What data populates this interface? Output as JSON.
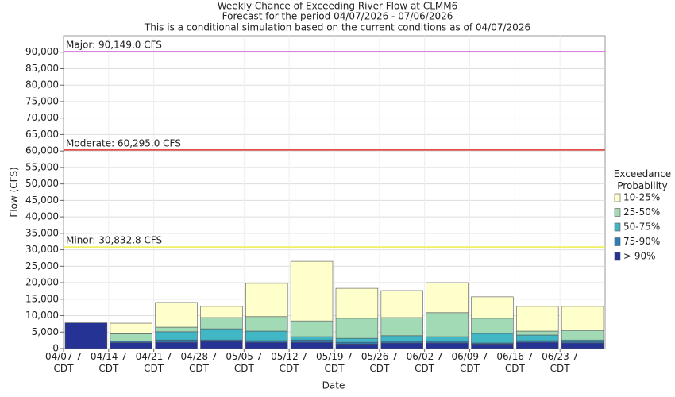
{
  "chart_data": {
    "type": "stacked_bar",
    "title": "Weekly Chance of Exceeding River Flow at CLMM6",
    "subtitle": "Forecast for the period 04/07/2026 - 07/06/2026",
    "note": "This is a conditional simulation based on the current conditions as of 04/07/2026",
    "x_label": "Date",
    "y_label": "Flow (CFS)",
    "categories": [
      "04/07 7 CDT",
      "04/14 7 CDT",
      "04/21 7 CDT",
      "04/28 7 CDT",
      "05/05 7 CDT",
      "05/12 7 CDT",
      "05/19 7 CDT",
      "05/26 7 CDT",
      "06/02 7 CDT",
      "06/09 7 CDT",
      "06/16 7 CDT",
      "06/23 7 CDT"
    ],
    "legend_title": "Exceedance Probability",
    "series": [
      {
        "name": "> 90%",
        "color": "#253494",
        "values": [
          7800,
          1800,
          1900,
          2200,
          1900,
          1900,
          1400,
          1700,
          1700,
          1400,
          1900,
          1700
        ]
      },
      {
        "name": "75-90%",
        "color": "#2c7fb8",
        "values": [
          0,
          400,
          700,
          400,
          500,
          700,
          500,
          500,
          500,
          300,
          500,
          500
        ]
      },
      {
        "name": "50-75%",
        "color": "#41b6c4",
        "values": [
          0,
          100,
          2500,
          3400,
          2900,
          1000,
          1200,
          1700,
          1400,
          2900,
          1700,
          400
        ]
      },
      {
        "name": "25-50%",
        "color": "#a1dab4",
        "values": [
          0,
          2200,
          1400,
          3400,
          4400,
          4800,
          6100,
          5500,
          7300,
          4600,
          1200,
          2900
        ]
      },
      {
        "name": "10-25%",
        "color": "#ffffcc",
        "values": [
          0,
          3200,
          7500,
          3400,
          10100,
          18100,
          9100,
          8200,
          9100,
          6500,
          7500,
          7300
        ]
      }
    ],
    "thresholds": [
      {
        "label": "Major: 90,149.0 CFS",
        "value": 90149,
        "color": "#cc33cc"
      },
      {
        "label": "Moderate: 60,295.0 CFS",
        "value": 60295,
        "color": "#dd3333"
      },
      {
        "label": "Minor: 30,832.8 CFS",
        "value": 30832.8,
        "color": "#eeee44"
      }
    ],
    "ylim": [
      0,
      95000
    ],
    "yticks": [
      0,
      {
        "value": 5000,
        "label": "5,000"
      },
      {
        "value": 10000,
        "label": "10,000"
      },
      {
        "value": 15000,
        "label": "15,000"
      },
      {
        "value": 20000,
        "label": "20,000"
      },
      {
        "value": 25000,
        "label": "25,000"
      },
      {
        "value": 30000,
        "label": "30,000"
      },
      {
        "value": 35000,
        "label": "35,000"
      },
      {
        "value": 40000,
        "label": "40,000"
      },
      {
        "value": 45000,
        "label": "45,000"
      },
      {
        "value": 50000,
        "label": "50,000"
      },
      {
        "value": 55000,
        "label": "55,000"
      },
      {
        "value": 60000,
        "label": "60,000"
      },
      {
        "value": 65000,
        "label": "65,000"
      },
      {
        "value": 70000,
        "label": "70,000"
      },
      {
        "value": 75000,
        "label": "75,000"
      },
      {
        "value": 80000,
        "label": "80,000"
      },
      {
        "value": 85000,
        "label": "85,000"
      },
      {
        "value": 90000,
        "label": "90,000"
      }
    ],
    "grid": true
  }
}
